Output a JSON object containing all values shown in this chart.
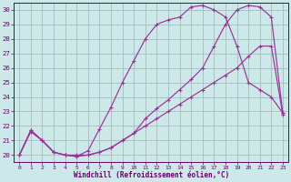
{
  "xlabel": "Windchill (Refroidissement éolien,°C)",
  "xlim": [
    0,
    23
  ],
  "ylim": [
    20,
    30
  ],
  "yticks": [
    20,
    21,
    22,
    23,
    24,
    25,
    26,
    27,
    28,
    29,
    30
  ],
  "xticks": [
    0,
    1,
    2,
    3,
    4,
    5,
    6,
    7,
    8,
    9,
    10,
    11,
    12,
    13,
    14,
    15,
    16,
    17,
    18,
    19,
    20,
    21,
    22,
    23
  ],
  "bg_color": "#cce8e8",
  "grid_color": "#aabbbb",
  "line_color": "#993399",
  "curve_upper_x": [
    0,
    1,
    2,
    3,
    4,
    5,
    6,
    7,
    8,
    9,
    10,
    11,
    12,
    13,
    14,
    15,
    16,
    17,
    18,
    19,
    20,
    21,
    22,
    23
  ],
  "curve_upper_y": [
    20.0,
    21.7,
    21.0,
    20.2,
    20.0,
    19.9,
    20.3,
    21.8,
    23.3,
    25.0,
    26.5,
    28.0,
    29.0,
    29.3,
    29.5,
    30.2,
    30.3,
    30.0,
    29.5,
    27.5,
    25.0,
    24.5,
    24.0,
    22.9
  ],
  "curve_mid_x": [
    0,
    1,
    2,
    3,
    4,
    5,
    6,
    7,
    8,
    9,
    10,
    11,
    12,
    13,
    14,
    15,
    16,
    17,
    18,
    19,
    20,
    21,
    22,
    23
  ],
  "curve_mid_y": [
    20.0,
    21.7,
    21.0,
    20.2,
    20.0,
    19.9,
    20.0,
    20.2,
    20.5,
    21.0,
    21.5,
    22.5,
    23.2,
    23.8,
    24.5,
    25.2,
    26.0,
    27.5,
    29.0,
    30.0,
    30.3,
    30.2,
    29.5,
    22.9
  ],
  "curve_lower_x": [
    0,
    1,
    2,
    3,
    4,
    5,
    6,
    7,
    8,
    9,
    10,
    11,
    12,
    13,
    14,
    15,
    16,
    17,
    18,
    19,
    20,
    21,
    22,
    23
  ],
  "curve_lower_y": [
    20.0,
    21.6,
    21.0,
    20.2,
    20.0,
    20.0,
    20.0,
    20.2,
    20.5,
    21.0,
    21.5,
    22.0,
    22.5,
    23.0,
    23.5,
    24.0,
    24.5,
    25.0,
    25.5,
    26.0,
    26.8,
    27.5,
    27.5,
    22.8
  ],
  "tick_fontsize": 5,
  "xlabel_fontsize": 5.5,
  "tick_color": "#660066",
  "spine_color": "#660066"
}
